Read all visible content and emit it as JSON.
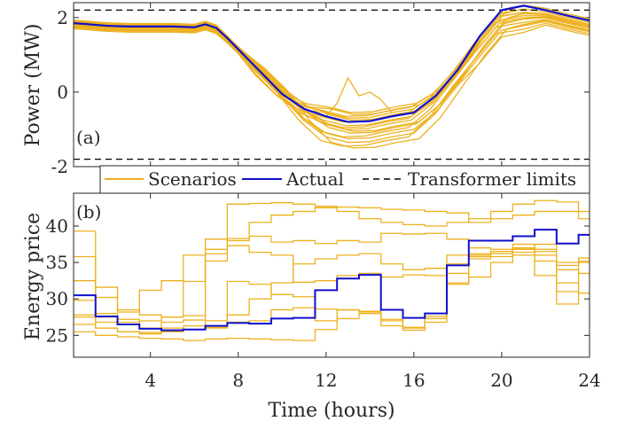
{
  "colors": {
    "scenario": "#EDB120",
    "actual": "#1010CC",
    "limit": "#000000",
    "axis": "#262626"
  },
  "legend": {
    "scenarios": "Scenarios",
    "actual": "Actual",
    "limits": "Transformer limits"
  },
  "xlabel": "Time (hours)",
  "chart_data": [
    {
      "type": "line",
      "panel_label": "(a)",
      "ylabel": "Power (MW)",
      "xlim": [
        0.5,
        24
      ],
      "ylim": [
        -2,
        2.4
      ],
      "xticks": [
        4,
        8,
        12,
        16,
        20,
        24
      ],
      "yticks": [
        {
          "v": 2,
          "t": "2"
        },
        {
          "v": 0,
          "t": "0"
        },
        {
          "v": -2,
          "t": "-2"
        }
      ],
      "limits": [
        2.2,
        -1.8
      ],
      "x": [
        0.5,
        1,
        2,
        3,
        4,
        5,
        6,
        6.5,
        7,
        7.5,
        8,
        9,
        10,
        11,
        12,
        13,
        14,
        15,
        16,
        17,
        18,
        19,
        20,
        21,
        22,
        23,
        24
      ],
      "actual": [
        1.85,
        1.83,
        1.78,
        1.76,
        1.76,
        1.76,
        1.74,
        1.82,
        1.72,
        1.45,
        1.15,
        0.55,
        -0.05,
        -0.45,
        -0.65,
        -0.8,
        -0.78,
        -0.65,
        -0.55,
        -0.1,
        0.6,
        1.5,
        2.2,
        2.32,
        2.2,
        2.05,
        1.92
      ],
      "scenario_offsets": [
        [
          -0.15,
          -0.05,
          0.0,
          -0.1
        ],
        [
          -0.1,
          0.0,
          -0.2,
          -0.15
        ],
        [
          -0.05,
          0.05,
          0.1,
          -0.05
        ],
        [
          0.0,
          0.1,
          -0.3,
          -0.2
        ],
        [
          0.05,
          -0.1,
          0.2,
          0.0
        ],
        [
          -0.08,
          0.08,
          -0.4,
          -0.25
        ],
        [
          0.02,
          0.0,
          0.15,
          -0.1
        ],
        [
          -0.12,
          -0.08,
          -0.55,
          -0.3
        ],
        [
          0.04,
          0.12,
          0.05,
          0.05
        ],
        [
          -0.02,
          -0.02,
          -0.25,
          -0.12
        ],
        [
          0.06,
          0.04,
          -0.65,
          -0.35
        ],
        [
          -0.06,
          0.06,
          -0.1,
          -0.2
        ],
        [
          0.08,
          -0.06,
          -0.45,
          -0.4
        ],
        [
          -0.1,
          0.02,
          0.25,
          -0.05
        ],
        [
          0.03,
          0.09,
          -0.7,
          -0.28
        ],
        [
          -0.04,
          -0.04,
          -0.15,
          -0.18
        ]
      ],
      "spike": {
        "x": [
          11,
          11.5,
          12,
          12.5,
          13,
          13.5,
          14,
          14.5,
          15
        ],
        "y": [
          -0.55,
          -0.5,
          -0.65,
          -0.3,
          0.38,
          -0.1,
          0.0,
          -0.2,
          -0.55
        ]
      }
    },
    {
      "type": "line",
      "panel_label": "(b)",
      "ylabel": "Energy price",
      "xlim": [
        0.5,
        24
      ],
      "ylim": [
        22,
        44.5
      ],
      "xticks": [
        4,
        8,
        12,
        16,
        20,
        24
      ],
      "yticks": [
        {
          "v": 25,
          "t": "25"
        },
        {
          "v": 30,
          "t": "30"
        },
        {
          "v": 35,
          "t": "35"
        },
        {
          "v": 40,
          "t": "40"
        }
      ],
      "actual": [
        30.5,
        27.6,
        26.5,
        25.9,
        25.7,
        25.8,
        26.3,
        26.7,
        26.6,
        27.3,
        27.4,
        31.2,
        32.8,
        33.3,
        28.5,
        27.4,
        28.0,
        34.6,
        38.0,
        38.0,
        38.6,
        39.5,
        37.6,
        38.8
      ],
      "scenarios": [
        [
          39.3,
          28.0,
          27.2,
          26.0,
          26.8,
          27.1,
          36.2,
          43.0,
          43.1,
          43.2,
          43.0,
          42.7,
          42.6,
          42.5,
          42.3,
          42.2,
          42.0,
          41.8,
          40.5,
          41.0,
          41.5,
          42.0,
          42.0,
          41.0
        ],
        [
          32.5,
          31.6,
          28.5,
          27.8,
          27.5,
          32.4,
          35.2,
          38.0,
          40.5,
          41.5,
          42.0,
          42.5,
          42.0,
          41.0,
          40.5,
          40.2,
          40.0,
          40.5,
          41.0,
          42.0,
          43.0,
          43.5,
          43.3,
          42.0
        ],
        [
          35.8,
          30.2,
          28.2,
          31.2,
          32.5,
          36.0,
          38.2,
          38.3,
          38.6,
          37.8,
          38.0,
          37.6,
          38.0,
          37.8,
          39.0,
          38.9,
          39.0,
          38.2,
          36.0,
          36.5,
          37.0,
          36.5,
          35.0,
          35.0
        ],
        [
          27.8,
          26.8,
          26.5,
          26.0,
          26.0,
          26.3,
          27.0,
          27.8,
          30.0,
          32.2,
          34.8,
          35.5,
          36.0,
          36.2,
          34.8,
          34.0,
          34.2,
          36.0,
          37.0,
          36.8,
          37.0,
          36.0,
          34.0,
          33.5
        ],
        [
          26.5,
          26.0,
          25.5,
          25.2,
          25.5,
          25.8,
          26.0,
          32.4,
          32.0,
          30.6,
          30.3,
          27.0,
          28.5,
          28.3,
          26.3,
          26.0,
          27.6,
          33.5,
          35.8,
          35.8,
          36.0,
          33.2,
          29.3,
          35.6
        ],
        [
          29.8,
          27.5,
          26.8,
          27.0,
          27.5,
          27.7,
          36.8,
          37.3,
          36.4,
          36.0,
          32.3,
          32.5,
          33.2,
          33.5,
          33.0,
          33.3,
          33.2,
          34.8,
          36.2,
          36.5,
          36.8,
          37.5,
          34.6,
          35.2
        ],
        [
          27.5,
          26.0,
          25.5,
          25.4,
          25.6,
          25.8,
          26.1,
          26.8,
          27.0,
          28.5,
          28.8,
          28.6,
          28.5,
          28.2,
          27.2,
          26.1,
          26.8,
          32.2,
          33.0,
          35.0,
          37.5,
          36.8,
          32.2,
          30.8
        ],
        [
          25.5,
          25.0,
          24.8,
          24.6,
          24.5,
          24.3,
          24.5,
          24.6,
          24.5,
          24.4,
          24.3,
          25.8,
          27.3,
          28.0,
          27.0,
          25.7,
          27.3,
          32.0,
          35.5,
          36.2,
          36.4,
          35.2,
          31.0,
          30.8
        ]
      ]
    }
  ]
}
